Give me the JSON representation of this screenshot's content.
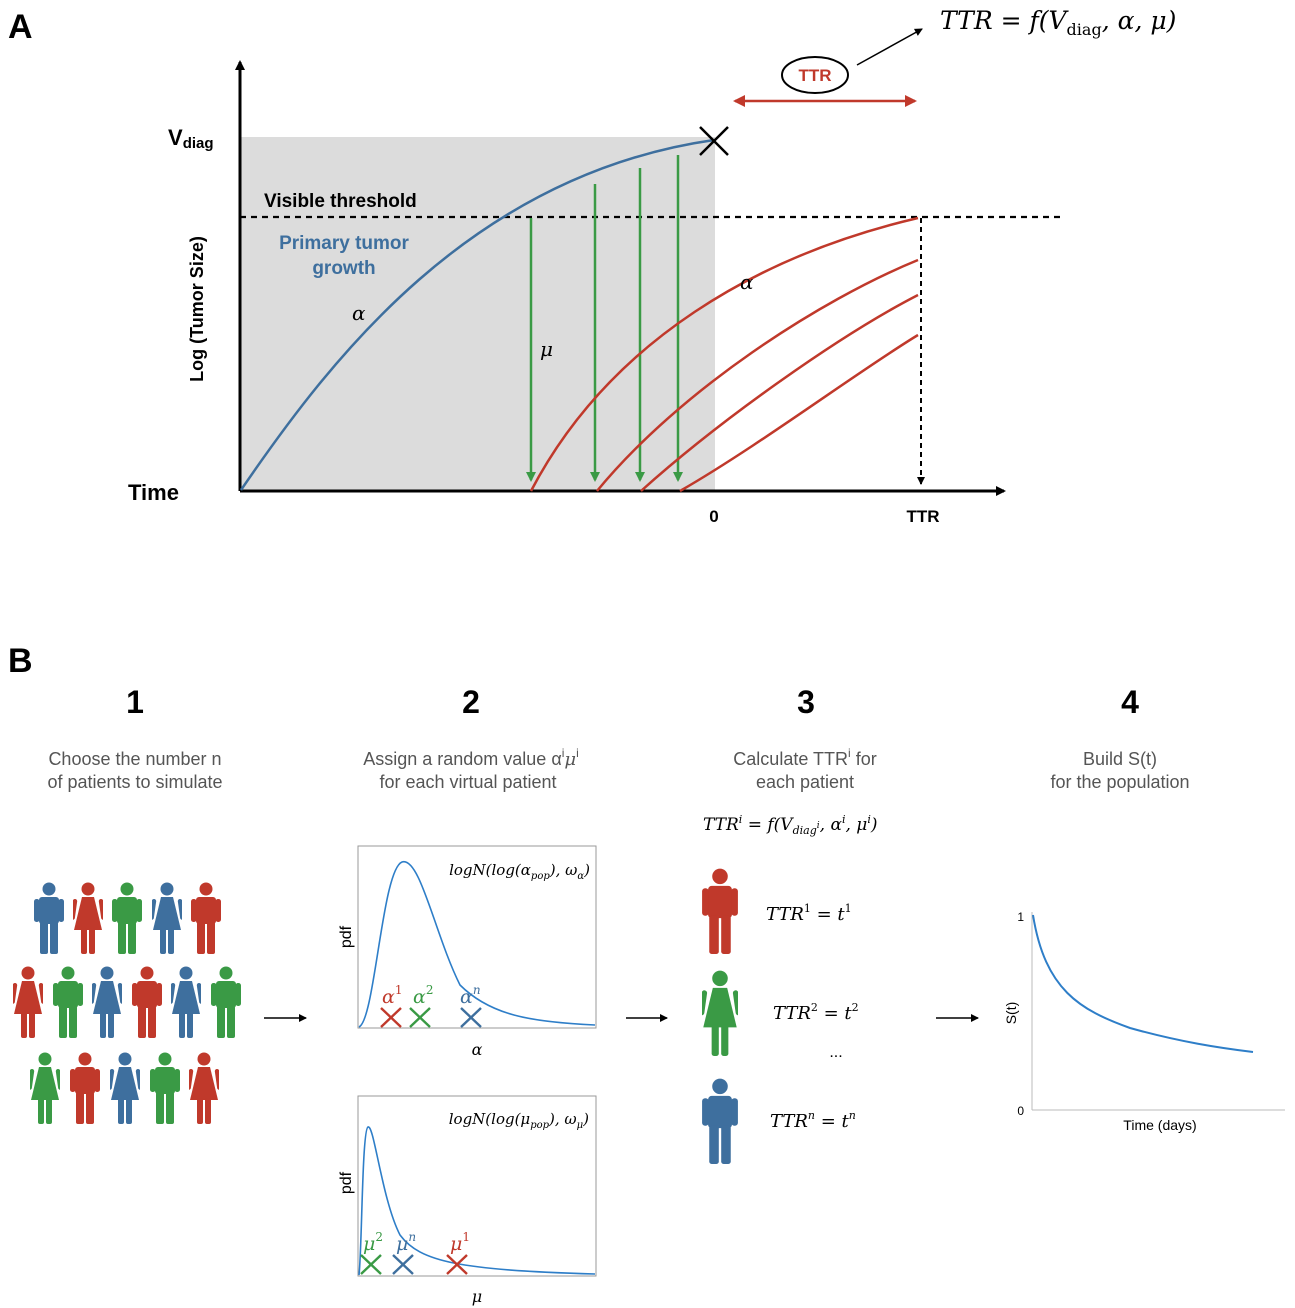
{
  "panel_a": {
    "label": "A",
    "formula_top": "TTR = f(V",
    "formula_top_sub": "diag",
    "formula_top_end": ", α, μ)",
    "ttr_badge": "TTR",
    "v_label": "V",
    "v_label_sub": "diag",
    "visible_threshold": "Visible threshold",
    "primary_line1": "Primary tumor",
    "primary_line2": "growth",
    "y_axis_label": "Log (Tumor Size)",
    "x_axis_label": "Time",
    "alpha_primary": "α",
    "alpha_metastasis": "α",
    "mu": "μ",
    "tick_zero": "0",
    "tick_ttr": "TTR",
    "colors": {
      "primary": "#3e6f9e",
      "metastasis": "#c0392b",
      "seeding": "#3a9a45",
      "shade": "#dcdcdc"
    }
  },
  "panel_b": {
    "label": "B",
    "steps": [
      {
        "number": "1",
        "line1": "Choose the number n",
        "line2": "of patients to simulate"
      },
      {
        "number": "2",
        "line1": "Assign a random value α",
        "line1_sup": "i",
        "line1_mid": "μ",
        "line1_sup2": "i",
        "line2": "for each virtual patient"
      },
      {
        "number": "3",
        "line1": "Calculate TTR",
        "line1_sup": "i",
        "line1_end": " for",
        "line2": "each patient"
      },
      {
        "number": "4",
        "line1": "Build S(t)",
        "line2": "for the population"
      }
    ],
    "alpha_dist": {
      "formula": "logN(log(α",
      "formula_sub": "pop",
      "formula_end": "), ω",
      "formula_sub2": "α",
      "formula_close": ")",
      "ylabel": "pdf",
      "xlabel": "α",
      "markers": [
        {
          "label": "α",
          "sup": "1"
        },
        {
          "label": "α",
          "sup": "2"
        },
        {
          "label": "α",
          "sup": "n"
        }
      ]
    },
    "mu_dist": {
      "formula": "logN(log(μ",
      "formula_sub": "pop",
      "formula_end": "), ω",
      "formula_sub2": "μ",
      "formula_close": ")",
      "ylabel": "pdf",
      "xlabel": "μ",
      "markers": [
        {
          "label": "μ",
          "sup": "2"
        },
        {
          "label": "μ",
          "sup": "n"
        },
        {
          "label": "μ",
          "sup": "1"
        }
      ]
    },
    "ttr_formula": {
      "a": "TTR",
      "sup": "i",
      "b": " = f(V",
      "sub": "diag",
      "subsup": "i",
      "c": ", α",
      "csup": "i",
      "d": ", μ",
      "dsup": "i",
      "e": ")"
    },
    "patients": [
      {
        "lhs": "TTR",
        "sup": "1",
        "rhs": " = t",
        "rsup": "1"
      },
      {
        "lhs": "TTR",
        "sup": "2",
        "rhs": " = t",
        "rsup": "2"
      },
      {
        "lhs": "TTR",
        "sup": "n",
        "rhs": " = t",
        "rsup": "n"
      }
    ],
    "ellipsis": "...",
    "survival": {
      "ylabel": "S(t)",
      "xlabel": "Time (days)",
      "ytick_top": "1",
      "ytick_bottom": "0"
    },
    "colors": {
      "blue": "#3e6f9e",
      "red": "#c0392b",
      "green": "#3a9a45"
    }
  }
}
